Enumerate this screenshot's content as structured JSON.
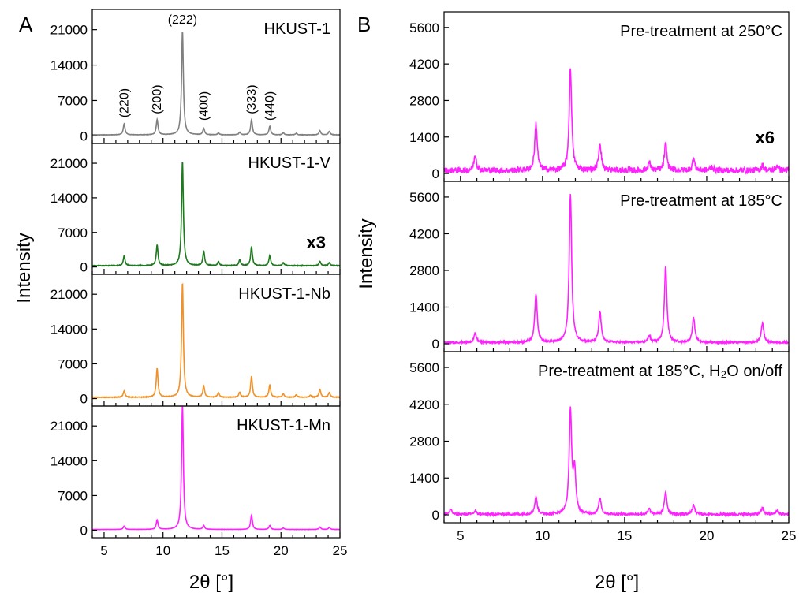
{
  "panel_letters": [
    "A",
    "B"
  ],
  "x_axis_title": "2θ [°]",
  "y_axis_title": "Intensity",
  "chart_data": [
    {
      "type": "line",
      "panel": "A",
      "label": "HKUST-1",
      "color": "#808080",
      "xlim": [
        4,
        25
      ],
      "ylim": [
        -1500,
        25000
      ],
      "xticks": [
        5,
        10,
        15,
        20,
        25
      ],
      "yticks": [
        0,
        7000,
        14000,
        21000
      ],
      "baseline": 200,
      "noise": 30,
      "peaks": [
        [
          6.7,
          2200
        ],
        [
          9.5,
          3000
        ],
        [
          11.65,
          20500
        ],
        [
          13.45,
          1300
        ],
        [
          14.7,
          350
        ],
        [
          16.5,
          500
        ],
        [
          17.5,
          3000
        ],
        [
          19.05,
          1700
        ],
        [
          20.2,
          400
        ],
        [
          21.3,
          300
        ],
        [
          23.3,
          800
        ],
        [
          24.1,
          700
        ]
      ],
      "annotations": [
        {
          "text": "(220)",
          "x": 6.7,
          "y": 3600,
          "rotate": true
        },
        {
          "text": "(200)",
          "x": 9.5,
          "y": 4300,
          "rotate": true
        },
        {
          "text": "(222)",
          "x": 11.65,
          "y": 22200,
          "rotate": false
        },
        {
          "text": "(400)",
          "x": 13.45,
          "y": 3000,
          "rotate": true
        },
        {
          "text": "(333)",
          "x": 17.5,
          "y": 4300,
          "rotate": true
        },
        {
          "text": "(440)",
          "x": 19.05,
          "y": 3000,
          "rotate": true
        }
      ]
    },
    {
      "type": "line",
      "panel": "A",
      "label": "HKUST-1-V",
      "color": "#1e7a1e",
      "xlim": [
        4,
        25
      ],
      "ylim": [
        -1500,
        25000
      ],
      "xticks": [
        5,
        10,
        15,
        20,
        25
      ],
      "yticks": [
        0,
        7000,
        14000,
        21000
      ],
      "baseline": 250,
      "noise": 60,
      "multiplier": "x3",
      "peaks": [
        [
          6.7,
          2000
        ],
        [
          9.5,
          4200
        ],
        [
          11.65,
          21000
        ],
        [
          13.45,
          3000
        ],
        [
          14.7,
          800
        ],
        [
          16.5,
          1200
        ],
        [
          17.5,
          3800
        ],
        [
          19.05,
          2000
        ],
        [
          20.2,
          600
        ],
        [
          23.3,
          900
        ],
        [
          24.1,
          600
        ]
      ]
    },
    {
      "type": "line",
      "panel": "A",
      "label": "HKUST-1-Nb",
      "color": "#f0922a",
      "xlim": [
        4,
        25
      ],
      "ylim": [
        -1500,
        25000
      ],
      "xticks": [
        5,
        10,
        15,
        20,
        25
      ],
      "yticks": [
        0,
        7000,
        14000,
        21000
      ],
      "baseline": 250,
      "noise": 50,
      "peaks": [
        [
          6.7,
          1300
        ],
        [
          9.5,
          5800
        ],
        [
          11.65,
          23000
        ],
        [
          13.45,
          2300
        ],
        [
          14.7,
          900
        ],
        [
          16.5,
          1000
        ],
        [
          17.5,
          4200
        ],
        [
          19.05,
          2500
        ],
        [
          20.2,
          700
        ],
        [
          21.3,
          500
        ],
        [
          22.5,
          400
        ],
        [
          23.3,
          1600
        ],
        [
          24.1,
          1000
        ]
      ]
    },
    {
      "type": "line",
      "panel": "A",
      "label": "HKUST-1-Mn",
      "color": "#ff22ff",
      "xlim": [
        4,
        25
      ],
      "ylim": [
        -1500,
        25000
      ],
      "xticks": [
        5,
        10,
        15,
        20,
        25
      ],
      "yticks": [
        0,
        7000,
        14000,
        21000
      ],
      "baseline": 150,
      "noise": 20,
      "peaks": [
        [
          6.7,
          700
        ],
        [
          9.5,
          1900
        ],
        [
          11.65,
          25000
        ],
        [
          13.45,
          800
        ],
        [
          17.5,
          2900
        ],
        [
          19.05,
          800
        ],
        [
          20.2,
          300
        ],
        [
          23.3,
          500
        ],
        [
          24.1,
          400
        ]
      ]
    },
    {
      "type": "line",
      "panel": "B",
      "label": "Pre-treatment at 250°C",
      "color": "#ff22ff",
      "xlim": [
        4,
        25
      ],
      "ylim": [
        -300,
        6200
      ],
      "xticks": [
        5,
        10,
        15,
        20,
        25
      ],
      "yticks": [
        0,
        1400,
        2800,
        4200,
        5600
      ],
      "baseline": 120,
      "noise": 110,
      "multiplier": "x6",
      "peaks": [
        [
          5.9,
          600
        ],
        [
          9.6,
          1800
        ],
        [
          11.7,
          3900
        ],
        [
          13.5,
          1050
        ],
        [
          16.5,
          300
        ],
        [
          17.5,
          1000
        ],
        [
          19.2,
          450
        ],
        [
          20.3,
          150
        ],
        [
          23.4,
          200
        ],
        [
          24.3,
          200
        ]
      ]
    },
    {
      "type": "line",
      "panel": "B",
      "label": "Pre-treatment at 185°C",
      "color": "#ff22ff",
      "xlim": [
        4,
        25
      ],
      "ylim": [
        -300,
        6200
      ],
      "xticks": [
        5,
        10,
        15,
        20,
        25
      ],
      "yticks": [
        0,
        1400,
        2800,
        4200,
        5600
      ],
      "baseline": 50,
      "noise": 35,
      "peaks": [
        [
          5.9,
          350
        ],
        [
          9.6,
          1850
        ],
        [
          11.7,
          5650
        ],
        [
          13.5,
          1150
        ],
        [
          16.5,
          250
        ],
        [
          17.5,
          2900
        ],
        [
          19.2,
          950
        ],
        [
          23.4,
          750
        ]
      ]
    },
    {
      "type": "line",
      "panel": "B",
      "label": "Pre-treatment at 185°C, H₂O on/off",
      "color": "#ff22ff",
      "xlim": [
        4,
        25
      ],
      "ylim": [
        -300,
        6200
      ],
      "xticks": [
        5,
        10,
        15,
        20,
        25
      ],
      "yticks": [
        0,
        1400,
        2800,
        4200,
        5600
      ],
      "baseline": 20,
      "noise": 40,
      "peaks": [
        [
          4.4,
          180
        ],
        [
          5.9,
          120
        ],
        [
          9.6,
          650
        ],
        [
          11.7,
          3900
        ],
        [
          11.95,
          1600
        ],
        [
          13.5,
          600
        ],
        [
          16.5,
          200
        ],
        [
          17.5,
          850
        ],
        [
          19.2,
          350
        ],
        [
          23.4,
          250
        ],
        [
          24.3,
          150
        ]
      ]
    }
  ]
}
